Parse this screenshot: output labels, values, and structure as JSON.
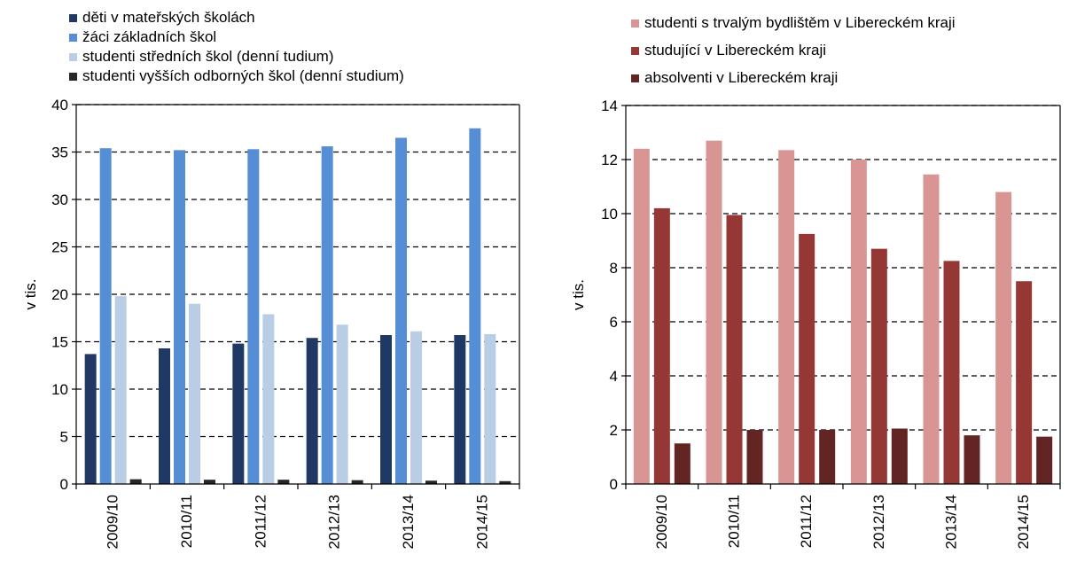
{
  "chart_data": [
    {
      "type": "bar",
      "categories": [
        "2009/10",
        "2010/11",
        "2011/12",
        "2012/13",
        "2013/14",
        "2014/15"
      ],
      "ylabel": "v tis.",
      "ylim": [
        0,
        40
      ],
      "yticks": [
        0,
        5,
        10,
        15,
        20,
        25,
        30,
        35,
        40
      ],
      "grid": true,
      "legend_position": "top",
      "series": [
        {
          "name": "děti v mateřských školách",
          "color": "#1f3864",
          "values": [
            13.7,
            14.3,
            14.8,
            15.4,
            15.7,
            15.7
          ]
        },
        {
          "name": "žáci základních škol",
          "color": "#558ed5",
          "values": [
            35.4,
            35.2,
            35.3,
            35.6,
            36.5,
            37.5
          ]
        },
        {
          "name": "studenti středních škol (denní tudium)",
          "color": "#b9cde5",
          "values": [
            19.8,
            19.0,
            17.9,
            16.8,
            16.1,
            15.8
          ]
        },
        {
          "name": "studenti vyšších odborných škol (denní studium)",
          "color": "#262626",
          "values": [
            0.5,
            0.45,
            0.45,
            0.4,
            0.35,
            0.3
          ]
        }
      ]
    },
    {
      "type": "bar",
      "categories": [
        "2009/10",
        "2010/11",
        "2011/12",
        "2012/13",
        "2013/14",
        "2014/15"
      ],
      "ylabel": "v tis.",
      "ylim": [
        0,
        14
      ],
      "yticks": [
        0,
        2,
        4,
        6,
        8,
        10,
        12,
        14
      ],
      "grid": true,
      "legend_position": "top",
      "series": [
        {
          "name": "studenti s trvalým bydlištěm v Libereckém kraji",
          "color": "#d99594",
          "values": [
            12.4,
            12.7,
            12.35,
            12.0,
            11.45,
            10.8
          ]
        },
        {
          "name": "studující v Libereckém kraji",
          "color": "#953735",
          "values": [
            10.2,
            9.95,
            9.25,
            8.7,
            8.25,
            7.5
          ]
        },
        {
          "name": "absolventi v Libereckém kraji",
          "color": "#632523",
          "values": [
            1.5,
            2.0,
            2.0,
            2.05,
            1.8,
            1.75
          ]
        }
      ]
    }
  ]
}
